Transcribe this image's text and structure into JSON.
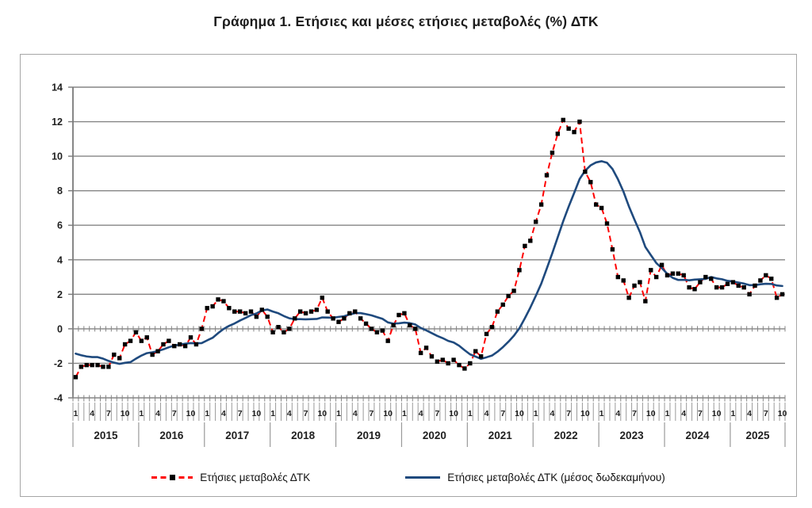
{
  "chart_data": {
    "type": "line",
    "title": "Γράφημα 1. Ετήσιες και μέσες ετήσιες μεταβολές (%) ΔΤΚ",
    "frequency": "monthly",
    "x_start": "2015-01",
    "x_end": "2025-10",
    "years": [
      "2015",
      "2016",
      "2017",
      "2018",
      "2019",
      "2020",
      "2021",
      "2022",
      "2023",
      "2024",
      "2025"
    ],
    "months_per_year": [
      12,
      12,
      12,
      12,
      12,
      12,
      12,
      12,
      12,
      12,
      10
    ],
    "month_tick_labels": [
      "1",
      "4",
      "7",
      "10"
    ],
    "month_tick_positions": [
      0,
      3,
      6,
      9
    ],
    "y_ticks": [
      -4,
      -2,
      0,
      2,
      4,
      6,
      8,
      10,
      12,
      14
    ],
    "ylim": [
      -4,
      14
    ],
    "grid": true,
    "legend_position": "bottom",
    "colors": {
      "annual_line": "#fe0000",
      "marker": "#000000",
      "average_line": "#1f4a7e",
      "gridline": "#858585",
      "axis": "#7a7a7a",
      "separator": "#9a9a9a",
      "text": "#1f1f1f"
    },
    "series": [
      {
        "name": "Ετήσιες μεταβολές ΔΤΚ",
        "line_style": "dashed",
        "marker": "square",
        "values": [
          -2.8,
          -2.2,
          -2.1,
          -2.1,
          -2.1,
          -2.2,
          -2.2,
          -1.5,
          -1.7,
          -0.9,
          -0.7,
          -0.2,
          -0.7,
          -0.5,
          -1.5,
          -1.3,
          -0.9,
          -0.7,
          -1.0,
          -0.9,
          -1.0,
          -0.5,
          -0.9,
          0.0,
          1.2,
          1.3,
          1.7,
          1.6,
          1.2,
          1.0,
          1.0,
          0.9,
          1.0,
          0.7,
          1.1,
          0.7,
          -0.2,
          0.1,
          -0.2,
          0.0,
          0.6,
          1.0,
          0.9,
          1.0,
          1.1,
          1.8,
          1.0,
          0.6,
          0.4,
          0.6,
          0.9,
          1.0,
          0.6,
          0.3,
          0.0,
          -0.2,
          -0.1,
          -0.7,
          0.2,
          0.8,
          0.9,
          0.2,
          0.0,
          -1.4,
          -1.1,
          -1.6,
          -1.9,
          -1.8,
          -2.0,
          -1.8,
          -2.1,
          -2.3,
          -2.0,
          -1.3,
          -1.6,
          -0.3,
          0.1,
          1.0,
          1.4,
          1.9,
          2.2,
          3.4,
          4.8,
          5.1,
          6.2,
          7.2,
          8.9,
          10.2,
          11.3,
          12.1,
          11.6,
          11.4,
          12.0,
          9.1,
          8.5,
          7.2,
          7.0,
          6.1,
          4.6,
          3.0,
          2.8,
          1.8,
          2.5,
          2.7,
          1.6,
          3.4,
          3.0,
          3.7,
          3.1,
          3.2,
          3.2,
          3.1,
          2.4,
          2.3,
          2.7,
          3.0,
          2.9,
          2.4,
          2.4,
          2.6,
          2.7,
          2.5,
          2.4,
          2.0,
          2.5,
          2.8,
          3.1,
          2.9,
          1.8,
          2.0
        ]
      },
      {
        "name": "Ετήσιες μεταβολές ΔΤΚ (μέσος δωδεκαμήνου)",
        "line_style": "solid",
        "marker": "none",
        "values": [
          -1.44,
          -1.53,
          -1.6,
          -1.64,
          -1.64,
          -1.73,
          -1.86,
          -1.96,
          -2.03,
          -1.97,
          -1.93,
          -1.73,
          -1.55,
          -1.41,
          -1.36,
          -1.29,
          -1.19,
          -1.07,
          -0.97,
          -0.92,
          -0.86,
          -0.83,
          -0.84,
          -0.83,
          -0.67,
          -0.52,
          -0.25,
          -0.01,
          0.17,
          0.31,
          0.48,
          0.63,
          0.79,
          0.89,
          1.06,
          1.12,
          1.0,
          0.9,
          0.74,
          0.61,
          0.56,
          0.56,
          0.55,
          0.56,
          0.57,
          0.66,
          0.65,
          0.64,
          0.69,
          0.73,
          0.83,
          0.91,
          0.91,
          0.85,
          0.78,
          0.68,
          0.58,
          0.37,
          0.3,
          0.32,
          0.36,
          0.33,
          0.25,
          0.05,
          -0.09,
          -0.25,
          -0.41,
          -0.54,
          -0.7,
          -0.79,
          -0.98,
          -1.24,
          -1.48,
          -1.61,
          -1.74,
          -1.65,
          -1.55,
          -1.33,
          -1.06,
          -0.75,
          -0.4,
          0.03,
          0.61,
          1.23,
          1.91,
          2.62,
          3.49,
          4.37,
          5.3,
          6.23,
          7.08,
          7.87,
          8.68,
          9.16,
          9.47,
          9.64,
          9.71,
          9.62,
          9.26,
          8.66,
          7.95,
          7.09,
          6.33,
          5.61,
          4.74,
          4.27,
          3.81,
          3.52,
          3.19,
          2.95,
          2.83,
          2.84,
          2.81,
          2.85,
          2.87,
          2.89,
          3.0,
          2.92,
          2.87,
          2.78,
          2.74,
          2.68,
          2.62,
          2.53,
          2.53,
          2.58,
          2.61,
          2.6,
          2.51,
          2.48
        ]
      }
    ]
  }
}
